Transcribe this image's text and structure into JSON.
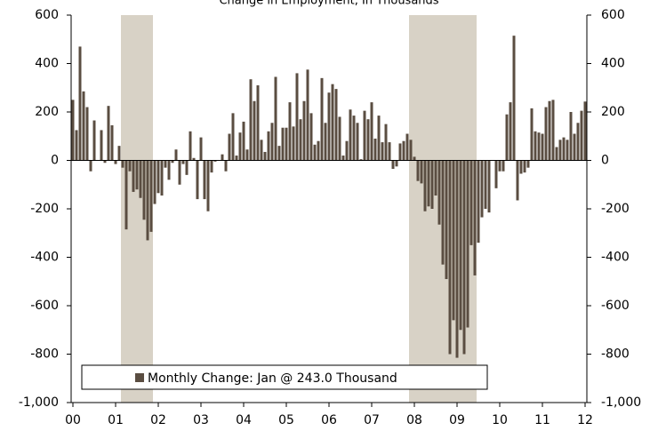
{
  "chart_data": {
    "type": "bar",
    "title": "Change in Employment, In Thousands",
    "categories": [
      "00",
      null,
      null,
      null,
      null,
      null,
      null,
      null,
      null,
      null,
      null,
      null,
      "01",
      null,
      null,
      null,
      null,
      null,
      null,
      null,
      null,
      null,
      null,
      null,
      "02",
      null,
      null,
      null,
      null,
      null,
      null,
      null,
      null,
      null,
      null,
      null,
      "03",
      null,
      null,
      null,
      null,
      null,
      null,
      null,
      null,
      null,
      null,
      null,
      "04",
      null,
      null,
      null,
      null,
      null,
      null,
      null,
      null,
      null,
      null,
      null,
      "05",
      null,
      null,
      null,
      null,
      null,
      null,
      null,
      null,
      null,
      null,
      null,
      "06",
      null,
      null,
      null,
      null,
      null,
      null,
      null,
      null,
      null,
      null,
      null,
      "07",
      null,
      null,
      null,
      null,
      null,
      null,
      null,
      null,
      null,
      null,
      null,
      "08",
      null,
      null,
      null,
      null,
      null,
      null,
      null,
      null,
      null,
      null,
      null,
      "09",
      null,
      null,
      null,
      null,
      null,
      null,
      null,
      null,
      null,
      null,
      null,
      "10",
      null,
      null,
      null,
      null,
      null,
      null,
      null,
      null,
      null,
      null,
      null,
      "11",
      null,
      null,
      null,
      null,
      null,
      null,
      null,
      null,
      null,
      null,
      null,
      "12"
    ],
    "series": [
      {
        "name": "Monthly Change: Jan @ 243.0 Thousand",
        "color": "#5a4d41",
        "values": [
          250,
          125,
          470,
          285,
          220,
          -45,
          165,
          0,
          125,
          -10,
          225,
          145,
          -15,
          60,
          -30,
          -285,
          -45,
          -130,
          -120,
          -155,
          -245,
          -330,
          -295,
          -180,
          -135,
          -145,
          -30,
          -80,
          -10,
          45,
          -100,
          -15,
          -60,
          120,
          10,
          -160,
          95,
          -160,
          -210,
          -50,
          -5,
          0,
          25,
          -45,
          110,
          195,
          20,
          115,
          160,
          45,
          335,
          245,
          310,
          85,
          35,
          120,
          155,
          345,
          60,
          135,
          135,
          240,
          140,
          360,
          170,
          245,
          375,
          195,
          65,
          80,
          340,
          155,
          280,
          315,
          295,
          180,
          20,
          80,
          210,
          185,
          155,
          5,
          205,
          170,
          240,
          90,
          185,
          75,
          150,
          75,
          -35,
          -25,
          70,
          80,
          110,
          85,
          15,
          -85,
          -95,
          -210,
          -190,
          -200,
          -145,
          -265,
          -430,
          -490,
          -800,
          -660,
          -815,
          -700,
          -800,
          -690,
          -350,
          -475,
          -340,
          -235,
          -200,
          -215,
          0,
          -115,
          -45,
          -45,
          190,
          240,
          515,
          -165,
          -55,
          -50,
          -30,
          215,
          120,
          115,
          110,
          220,
          245,
          250,
          55,
          85,
          95,
          85,
          200,
          110,
          155,
          205,
          243
        ]
      }
    ],
    "recessions": [
      [
        14,
        22
      ],
      [
        95,
        113
      ]
    ],
    "recession_color": "#d8d2c6",
    "ylim": [
      -1000,
      600
    ],
    "yticks": [
      {
        "value": -1000,
        "label": "-1,000"
      },
      -800,
      -600,
      -400,
      -200,
      0,
      200,
      400,
      600
    ],
    "y2lim": [
      -1000,
      600
    ],
    "y2ticks": [
      {
        "value": -1000,
        "label": "-1,000"
      },
      -800,
      -600,
      -400,
      -200,
      0,
      200,
      400,
      600
    ],
    "legend": "lower-left"
  }
}
